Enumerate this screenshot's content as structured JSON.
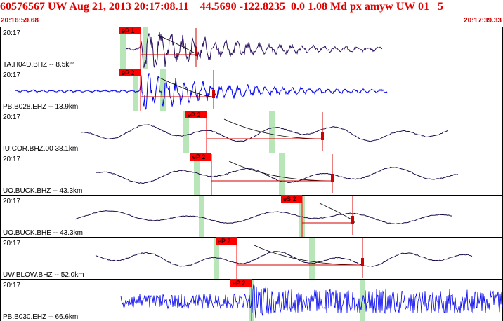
{
  "header": {
    "title": "60576567 UW Aug 21, 2013 20:17:08.11    44.5690 -122.8235  0.0 1.08 Md px amyw UW 01   5",
    "start_time": "20:16:59.68",
    "end_time": "20:17:39.33"
  },
  "colors": {
    "frame": "#000000",
    "pick_flag": "#ff0000",
    "pick_window": "#b9e6b9",
    "trace_dark": "#1a0a4a",
    "trace_blue": "#0000ee",
    "residual": "#d00000",
    "header_text": "#e00000"
  },
  "channels": [
    {
      "label": "TA.H04D.BHZ --  8.5km",
      "time_tick": "20:17",
      "color": "blue_dark",
      "style": "quake",
      "pick": "eP 1",
      "start": 0.25,
      "end": 0.76,
      "onset": 0.28,
      "amp": 0.75,
      "freq": 0.9
    },
    {
      "label": "PB.B028.EHZ --  13.9km",
      "time_tick": "20:17",
      "color": "blue",
      "style": "quake",
      "pick": "eP 2",
      "start": 0.03,
      "end": 0.77,
      "onset": 0.28,
      "amp": 0.62,
      "freq": 1.1
    },
    {
      "label": "IU.COR.BHZ.00 38.1km",
      "time_tick": "20:17",
      "color": "dark",
      "style": "smooth",
      "pick": "eP 2",
      "start": 0.16,
      "end": 0.89,
      "onset": 0.41,
      "amp": 0.45,
      "freq": 0.9
    },
    {
      "label": "UO.BUCK.BHZ -- 43.3km",
      "time_tick": "20:17",
      "color": "dark",
      "style": "smooth",
      "pick": "eP 2",
      "start": 0.19,
      "end": 0.91,
      "onset": 0.42,
      "amp": 0.42,
      "freq": 0.8
    },
    {
      "label": "UO.BUCK.BHE -- 43.3km",
      "time_tick": "20:17",
      "color": "dark",
      "style": "smooth",
      "pick": "eS 2",
      "start": 0.15,
      "end": 0.9,
      "onset": 0.6,
      "amp": 0.35,
      "freq": 0.7
    },
    {
      "label": "UW.BLOW.BHZ -- 52.0km",
      "time_tick": "20:17",
      "color": "dark",
      "style": "smooth",
      "pick": "eP 2",
      "start": 0.19,
      "end": 0.94,
      "onset": 0.47,
      "amp": 0.42,
      "freq": 0.9
    },
    {
      "label": "PB.B030.EHZ -- 66.6km",
      "time_tick": "20:17",
      "color": "blue",
      "style": "noise",
      "pick": "eP 2",
      "start": 0.24,
      "end": 1.0,
      "onset": 0.5,
      "amp": 0.85,
      "freq": 4
    }
  ]
}
